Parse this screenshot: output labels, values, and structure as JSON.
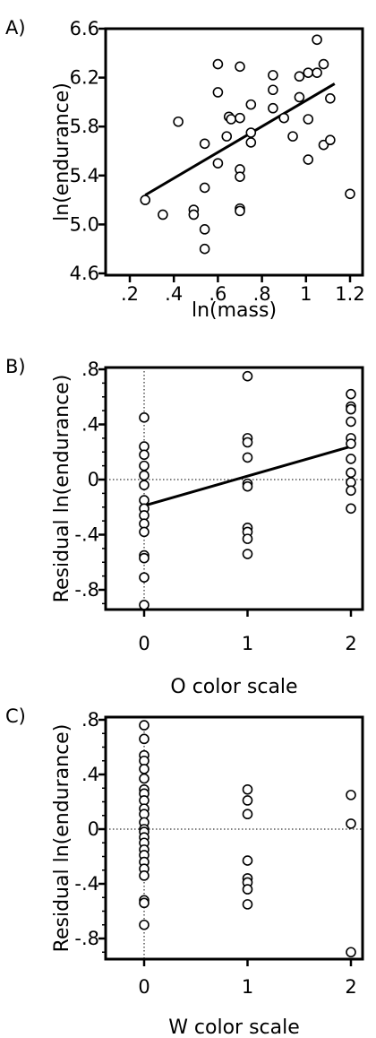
{
  "chart_data": [
    {
      "type": "scatter",
      "panel_label": "A)",
      "xlabel": "ln(mass)",
      "ylabel": "ln(endurance)",
      "xlim": [
        0.2,
        1.25
      ],
      "ylim": [
        4.6,
        6.6
      ],
      "xticks": [
        0.2,
        0.4,
        0.6,
        0.8,
        1.0,
        1.2
      ],
      "xtick_labels": [
        ".2",
        ".4",
        ".6",
        ".8",
        "1",
        "1.2"
      ],
      "yticks": [
        4.6,
        5.0,
        5.4,
        5.8,
        6.2,
        6.6
      ],
      "ytick_labels": [
        "4.6",
        "5.0",
        "5.4",
        "5.8",
        "6.2",
        "6.6"
      ],
      "fit_line": {
        "x": [
          0.27,
          1.13
        ],
        "y": [
          5.24,
          6.15
        ]
      },
      "points": [
        {
          "x": 0.27,
          "y": 5.2
        },
        {
          "x": 0.35,
          "y": 5.08
        },
        {
          "x": 0.42,
          "y": 5.84
        },
        {
          "x": 0.49,
          "y": 5.12
        },
        {
          "x": 0.49,
          "y": 5.08
        },
        {
          "x": 0.54,
          "y": 5.66
        },
        {
          "x": 0.54,
          "y": 5.3
        },
        {
          "x": 0.54,
          "y": 4.96
        },
        {
          "x": 0.54,
          "y": 4.8
        },
        {
          "x": 0.6,
          "y": 6.31
        },
        {
          "x": 0.6,
          "y": 6.08
        },
        {
          "x": 0.6,
          "y": 5.5
        },
        {
          "x": 0.64,
          "y": 5.72
        },
        {
          "x": 0.65,
          "y": 5.88
        },
        {
          "x": 0.66,
          "y": 5.86
        },
        {
          "x": 0.7,
          "y": 6.29
        },
        {
          "x": 0.7,
          "y": 5.87
        },
        {
          "x": 0.7,
          "y": 5.45
        },
        {
          "x": 0.7,
          "y": 5.39
        },
        {
          "x": 0.7,
          "y": 5.13
        },
        {
          "x": 0.7,
          "y": 5.11
        },
        {
          "x": 0.75,
          "y": 5.98
        },
        {
          "x": 0.75,
          "y": 5.75
        },
        {
          "x": 0.75,
          "y": 5.67
        },
        {
          "x": 0.85,
          "y": 6.22
        },
        {
          "x": 0.85,
          "y": 6.1
        },
        {
          "x": 0.85,
          "y": 5.95
        },
        {
          "x": 0.9,
          "y": 5.87
        },
        {
          "x": 0.94,
          "y": 5.72
        },
        {
          "x": 0.97,
          "y": 6.21
        },
        {
          "x": 0.97,
          "y": 6.04
        },
        {
          "x": 1.01,
          "y": 6.24
        },
        {
          "x": 1.01,
          "y": 5.86
        },
        {
          "x": 1.01,
          "y": 5.53
        },
        {
          "x": 1.05,
          "y": 6.51
        },
        {
          "x": 1.05,
          "y": 6.24
        },
        {
          "x": 1.08,
          "y": 6.31
        },
        {
          "x": 1.08,
          "y": 5.65
        },
        {
          "x": 1.11,
          "y": 6.03
        },
        {
          "x": 1.11,
          "y": 5.69
        },
        {
          "x": 1.2,
          "y": 5.25
        }
      ]
    },
    {
      "type": "scatter",
      "panel_label": "B)",
      "xlabel": "O color scale",
      "ylabel": "Residual ln(endurance)",
      "xlim": [
        -0.25,
        2.3
      ],
      "ylim": [
        -0.95,
        0.8
      ],
      "xticks": [
        0,
        1,
        2
      ],
      "xtick_labels": [
        "0",
        "1",
        "2"
      ],
      "yticks": [
        0.8,
        0.4,
        0,
        -0.4,
        -0.8
      ],
      "ytick_labels": [
        ".8",
        ".4",
        "0",
        "-.4",
        "-.8"
      ],
      "fit_line": {
        "x": [
          0,
          2
        ],
        "y": [
          -0.19,
          0.24
        ]
      },
      "points": [
        {
          "x": 0,
          "y": 0.45
        },
        {
          "x": 0,
          "y": 0.24
        },
        {
          "x": 0,
          "y": 0.18
        },
        {
          "x": 0,
          "y": 0.1
        },
        {
          "x": 0,
          "y": 0.03
        },
        {
          "x": 0,
          "y": -0.04
        },
        {
          "x": 0,
          "y": -0.15
        },
        {
          "x": 0,
          "y": -0.21
        },
        {
          "x": 0,
          "y": -0.26
        },
        {
          "x": 0,
          "y": -0.32
        },
        {
          "x": 0,
          "y": -0.38
        },
        {
          "x": 0,
          "y": -0.55
        },
        {
          "x": 0,
          "y": -0.57
        },
        {
          "x": 0,
          "y": -0.71
        },
        {
          "x": 0,
          "y": -0.91
        },
        {
          "x": 1,
          "y": 0.75
        },
        {
          "x": 1,
          "y": 0.3
        },
        {
          "x": 1,
          "y": 0.27
        },
        {
          "x": 1,
          "y": 0.16
        },
        {
          "x": 1,
          "y": -0.03
        },
        {
          "x": 1,
          "y": -0.05
        },
        {
          "x": 1,
          "y": -0.35
        },
        {
          "x": 1,
          "y": -0.38
        },
        {
          "x": 1,
          "y": -0.43
        },
        {
          "x": 1,
          "y": -0.54
        },
        {
          "x": 2,
          "y": 0.62
        },
        {
          "x": 2,
          "y": 0.53
        },
        {
          "x": 2,
          "y": 0.51
        },
        {
          "x": 2,
          "y": 0.42
        },
        {
          "x": 2,
          "y": 0.3
        },
        {
          "x": 2,
          "y": 0.26
        },
        {
          "x": 2,
          "y": 0.15
        },
        {
          "x": 2,
          "y": 0.05
        },
        {
          "x": 2,
          "y": -0.02
        },
        {
          "x": 2,
          "y": -0.08
        },
        {
          "x": 2,
          "y": -0.21
        }
      ]
    },
    {
      "type": "scatter",
      "panel_label": "C)",
      "xlabel": "W color scale",
      "ylabel": "Residual ln(endurance)",
      "xlim": [
        -0.25,
        2.3
      ],
      "ylim": [
        -0.95,
        0.8
      ],
      "xticks": [
        0,
        1,
        2
      ],
      "xtick_labels": [
        "0",
        "1",
        "2"
      ],
      "yticks": [
        0.8,
        0.4,
        0,
        -0.4,
        -0.8
      ],
      "ytick_labels": [
        ".8",
        ".4",
        "0",
        "-.4",
        "-.8"
      ],
      "points": [
        {
          "x": 0,
          "y": 0.76
        },
        {
          "x": 0,
          "y": 0.66
        },
        {
          "x": 0,
          "y": 0.54
        },
        {
          "x": 0,
          "y": 0.5
        },
        {
          "x": 0,
          "y": 0.44
        },
        {
          "x": 0,
          "y": 0.37
        },
        {
          "x": 0,
          "y": 0.29
        },
        {
          "x": 0,
          "y": 0.26
        },
        {
          "x": 0,
          "y": 0.21
        },
        {
          "x": 0,
          "y": 0.15
        },
        {
          "x": 0,
          "y": 0.11
        },
        {
          "x": 0,
          "y": 0.05
        },
        {
          "x": 0,
          "y": 0.0
        },
        {
          "x": 0,
          "y": -0.02
        },
        {
          "x": 0,
          "y": -0.06
        },
        {
          "x": 0,
          "y": -0.1
        },
        {
          "x": 0,
          "y": -0.15
        },
        {
          "x": 0,
          "y": -0.19
        },
        {
          "x": 0,
          "y": -0.24
        },
        {
          "x": 0,
          "y": -0.29
        },
        {
          "x": 0,
          "y": -0.34
        },
        {
          "x": 0,
          "y": -0.52
        },
        {
          "x": 0,
          "y": -0.54
        },
        {
          "x": 0,
          "y": -0.7
        },
        {
          "x": 1,
          "y": 0.29
        },
        {
          "x": 1,
          "y": 0.21
        },
        {
          "x": 1,
          "y": 0.11
        },
        {
          "x": 1,
          "y": -0.23
        },
        {
          "x": 1,
          "y": -0.36
        },
        {
          "x": 1,
          "y": -0.39
        },
        {
          "x": 1,
          "y": -0.44
        },
        {
          "x": 1,
          "y": -0.55
        },
        {
          "x": 2,
          "y": 0.25
        },
        {
          "x": 2,
          "y": 0.04
        },
        {
          "x": 2,
          "y": -0.9
        }
      ]
    }
  ]
}
